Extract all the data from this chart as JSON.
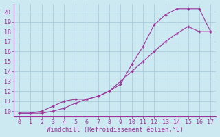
{
  "xlabel": "Windchill (Refroidissement éolien,°C)",
  "line_color": "#993399",
  "bg_color": "#cce8f0",
  "grid_color": "#aaccdd",
  "marker": "+",
  "xlim": [
    -0.5,
    17.5
  ],
  "ylim": [
    9.5,
    20.8
  ],
  "xticks": [
    0,
    1,
    2,
    3,
    4,
    5,
    6,
    7,
    8,
    9,
    10,
    11,
    12,
    13,
    14,
    15,
    16,
    17
  ],
  "yticks": [
    10,
    11,
    12,
    13,
    14,
    15,
    16,
    17,
    18,
    19,
    20
  ],
  "x_upper": [
    0,
    1,
    2,
    3,
    4,
    5,
    6,
    7,
    8,
    9,
    10,
    11,
    12,
    13,
    14,
    15,
    16,
    17
  ],
  "y_upper": [
    9.8,
    9.8,
    10.0,
    10.5,
    11.0,
    11.2,
    11.2,
    11.5,
    12.0,
    12.7,
    14.7,
    16.5,
    18.7,
    19.7,
    20.3,
    20.3,
    20.3,
    18.0
  ],
  "x_lower": [
    0,
    1,
    2,
    3,
    4,
    5,
    6,
    7,
    8,
    9,
    10,
    11,
    12,
    13,
    14,
    15,
    16,
    17
  ],
  "y_lower": [
    9.8,
    9.8,
    9.8,
    10.0,
    10.3,
    10.8,
    11.2,
    11.5,
    12.0,
    13.0,
    14.0,
    15.0,
    16.0,
    17.0,
    17.8,
    18.5,
    18.0,
    18.0
  ],
  "font_family": "monospace",
  "xlabel_fontsize": 6.5,
  "tick_fontsize": 6
}
